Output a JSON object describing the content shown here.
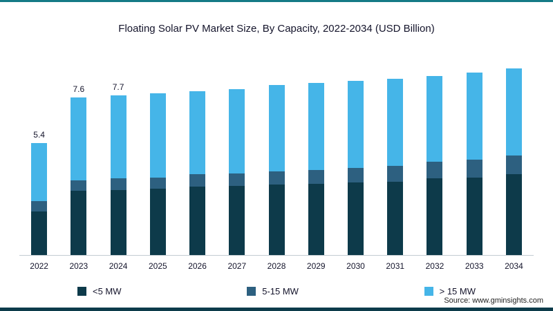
{
  "page": {
    "title": "Floating Solar PV Market Size, By Capacity, 2022-2034 (USD Billion)",
    "source": "Source: www.gminsights.com"
  },
  "chart_data": {
    "type": "bar",
    "stacked": true,
    "title": "Floating Solar PV Market Size, By Capacity, 2022-2034 (USD Billion)",
    "xlabel": "",
    "ylabel": "USD Billion",
    "ylim": [
      0,
      9.5
    ],
    "grid": false,
    "legend_position": "bottom",
    "categories": [
      "2022",
      "2023",
      "2024",
      "2025",
      "2026",
      "2027",
      "2028",
      "2029",
      "2030",
      "2031",
      "2032",
      "2033",
      "2034"
    ],
    "series": [
      {
        "name": "<5 MW",
        "color": "#0d3a4a",
        "values": [
          2.1,
          3.1,
          3.15,
          3.2,
          3.3,
          3.35,
          3.4,
          3.45,
          3.5,
          3.55,
          3.7,
          3.75,
          3.9
        ]
      },
      {
        "name": "5-15 MW",
        "color": "#2d6080",
        "values": [
          0.5,
          0.5,
          0.55,
          0.55,
          0.6,
          0.6,
          0.65,
          0.65,
          0.7,
          0.75,
          0.8,
          0.85,
          0.9
        ]
      },
      {
        "name": "> 15 MW",
        "color": "#45b5e8",
        "values": [
          2.8,
          4.0,
          4.0,
          4.05,
          4.0,
          4.05,
          4.15,
          4.2,
          4.2,
          4.2,
          4.15,
          4.2,
          4.2
        ]
      }
    ],
    "total_labels": [
      "5.4",
      "7.6",
      "7.7",
      "",
      "",
      "",
      "",
      "",
      "",
      "",
      "",
      "",
      ""
    ]
  }
}
